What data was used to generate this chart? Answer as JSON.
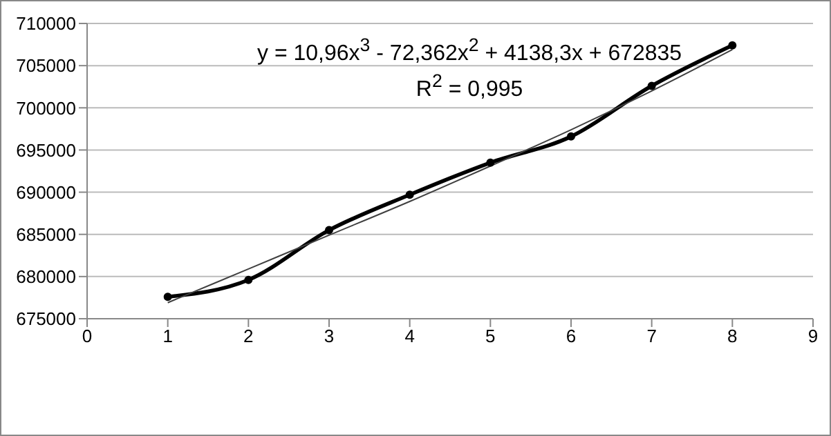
{
  "chart_data": {
    "type": "line",
    "x": [
      1,
      2,
      3,
      4,
      5,
      6,
      7,
      8
    ],
    "series": [
      {
        "color": "#000000",
        "marker": "circle",
        "values": [
          677600,
          679600,
          685500,
          689700,
          693500,
          696600,
          702600,
          707400
        ]
      },
      {
        "color": "#404040",
        "marker": "none",
        "values": [
          676900,
          680900,
          684900,
          688900,
          693100,
          697400,
          702000,
          706900
        ]
      }
    ],
    "xlim": [
      0,
      9
    ],
    "xticks": [
      0,
      1,
      2,
      3,
      4,
      5,
      6,
      7,
      8,
      9
    ],
    "ylim": [
      675000,
      710000
    ],
    "yticks": [
      675000,
      680000,
      685000,
      690000,
      695000,
      700000,
      705000,
      710000
    ],
    "grid": "y",
    "legend": false,
    "annotations": [
      "y = 10,96x$^{3}$ - 72,362x$^{2}$ + 4138,3x + 672835",
      "R$^{2}$ = 0,995"
    ]
  }
}
